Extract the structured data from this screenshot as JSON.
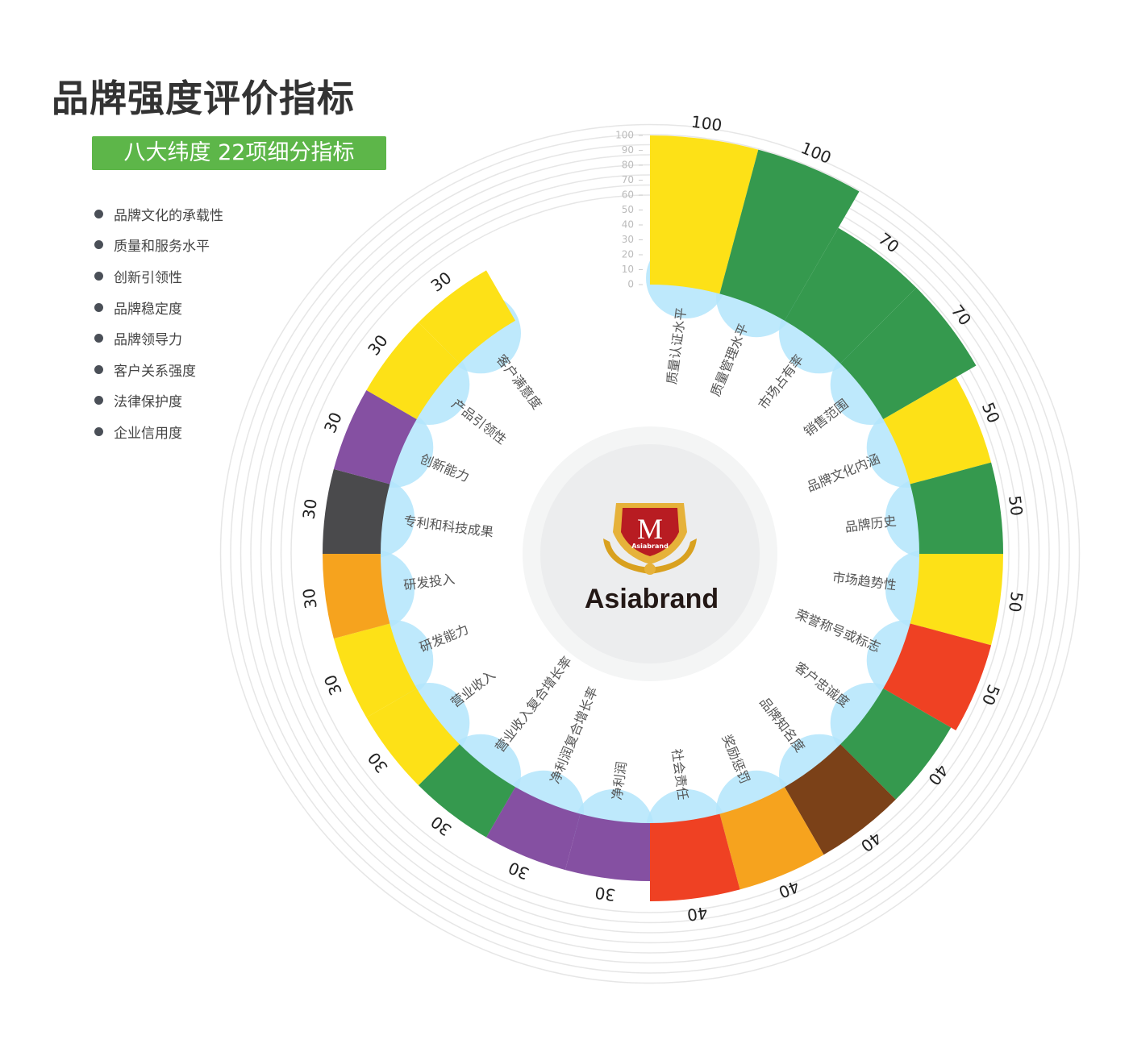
{
  "header": {
    "title": "品牌强度评价指标",
    "badge": "八大纬度  22项细分指标"
  },
  "legend": {
    "items": [
      "品牌文化的承载性",
      "质量和服务水平",
      "创新引领性",
      "品牌稳定度",
      "品牌领导力",
      "客户关系强度",
      "法律保护度",
      "企业信用度"
    ]
  },
  "logo": {
    "text": "Asiabrand",
    "emblem_letter": "M",
    "emblem_text": "Asiabrand"
  },
  "chart_data": {
    "type": "polar-bar",
    "radial_axis": {
      "range": [
        0,
        100
      ],
      "ticks": [
        "0",
        "10",
        "20",
        "30",
        "40",
        "50",
        "60",
        "70",
        "80",
        "90",
        "100"
      ]
    },
    "categories": [
      "质量认证水平",
      "质量管理水平",
      "市场占有率",
      "销售范围",
      "品牌文化内涵",
      "品牌历史",
      "市场趋势性",
      "荣誉称号或标志",
      "客户忠诚度",
      "品牌知名度",
      "奖励惩罚",
      "社会责任",
      "净利润",
      "净利润复合增长率",
      "营业收入复合增长率",
      "营业收入",
      "研发能力",
      "研发投入",
      "专利和科技成果",
      "创新能力",
      "产品引领性",
      "客户满意度"
    ],
    "values": [
      100,
      100,
      70,
      70,
      50,
      50,
      50,
      50,
      40,
      40,
      40,
      40,
      30,
      30,
      30,
      30,
      30,
      30,
      30,
      30,
      30,
      30
    ],
    "colors": [
      "#fde117",
      "#35994e",
      "#35994e",
      "#35994e",
      "#fde117",
      "#35994e",
      "#fde117",
      "#ef4123",
      "#35994e",
      "#7b4118",
      "#f6a31e",
      "#ef4123",
      "#8550a2",
      "#8550a2",
      "#35994e",
      "#fde117",
      "#fde117",
      "#f6a31e",
      "#4a4a4c",
      "#8550a2",
      "#fde117",
      "#fde117"
    ],
    "label_bubble_color": "#b3e5fc"
  }
}
